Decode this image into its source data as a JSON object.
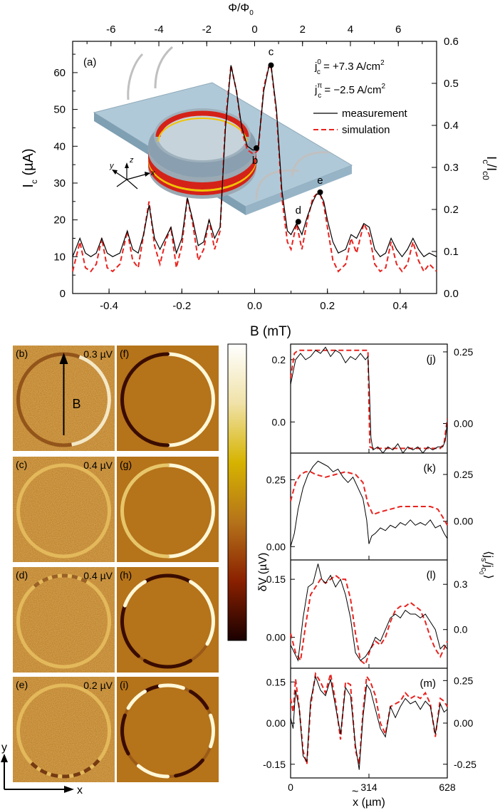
{
  "figure_label": "Figure with Ic(Phi) curve, SQUID maps, simulated maps and line scans",
  "chart_data": [
    {
      "id": "a",
      "type": "line",
      "panel_label": "(a)",
      "xlabel": "",
      "xlim": [
        -0.5,
        0.5
      ],
      "xticks": [
        "-0.4",
        "-0.2",
        "0.0",
        "0.2",
        "0.4"
      ],
      "top_axis_label": "Φ/Φ",
      "top_axis_label_sub": "0",
      "top_ticks": [
        "-6",
        "-4",
        "-2",
        "0",
        "2",
        "4",
        "6"
      ],
      "ylabel": "I",
      "ylabel_sub": "c",
      "ylabel_unit": "(µA)",
      "ylim": [
        0,
        68.5
      ],
      "yticks": [
        "0",
        "10",
        "20",
        "30",
        "40",
        "50",
        "60"
      ],
      "right_label": "I",
      "right_label_sub": "c",
      "right_label_tail": "/I",
      "right_label_sub2": "c0",
      "right_ticks": [
        "0.0",
        "0.1",
        "0.2",
        "0.3",
        "0.4",
        "0.5",
        "0.6"
      ],
      "jc0_prefix": "j",
      "jc0_sub": "c",
      "jc0_sup": "0",
      "jc0_value": " = +7.3 A/cm",
      "jcpi_prefix": "j",
      "jcpi_sub": "c",
      "jcpi_sup": "π",
      "jcpi_value": " = −2.5 A/cm",
      "unit_sup": "2",
      "legend": [
        "measurement",
        "simulation"
      ],
      "series_colors": [
        "#000000",
        "#e8231f"
      ],
      "series": [
        {
          "name": "measurement",
          "x": [
            -0.5,
            -0.48,
            -0.465,
            -0.45,
            -0.435,
            -0.42,
            -0.405,
            -0.39,
            -0.37,
            -0.35,
            -0.335,
            -0.32,
            -0.305,
            -0.29,
            -0.275,
            -0.26,
            -0.245,
            -0.23,
            -0.215,
            -0.2,
            -0.185,
            -0.17,
            -0.155,
            -0.14,
            -0.125,
            -0.11,
            -0.095,
            -0.08,
            -0.065,
            -0.05,
            -0.035,
            -0.02,
            -0.005,
            0.0,
            0.01,
            0.025,
            0.04,
            0.045,
            0.06,
            0.075,
            0.09,
            0.1,
            0.115,
            0.13,
            0.145,
            0.16,
            0.17,
            0.18,
            0.19,
            0.2,
            0.215,
            0.23,
            0.25,
            0.265,
            0.28,
            0.3,
            0.315,
            0.33,
            0.345,
            0.36,
            0.375,
            0.39,
            0.405,
            0.42,
            0.435,
            0.45,
            0.465,
            0.48,
            0.5
          ],
          "y": [
            10,
            15,
            11,
            10,
            11,
            15,
            11,
            10,
            11,
            17,
            12,
            11,
            16,
            24,
            15,
            12,
            15,
            18,
            11,
            15,
            26,
            20,
            13,
            14,
            20,
            15,
            18,
            45,
            62,
            55,
            45,
            40,
            39,
            39,
            40,
            55,
            62,
            62,
            50,
            28,
            17,
            16,
            19,
            16,
            21,
            25,
            27,
            27,
            25,
            20,
            14,
            11,
            12,
            16,
            15,
            19,
            18,
            12,
            10,
            11,
            15,
            12,
            10,
            12,
            15,
            12,
            10,
            11,
            10
          ]
        },
        {
          "name": "simulation",
          "x": [
            -0.5,
            -0.48,
            -0.465,
            -0.45,
            -0.435,
            -0.42,
            -0.405,
            -0.39,
            -0.37,
            -0.35,
            -0.335,
            -0.32,
            -0.305,
            -0.29,
            -0.275,
            -0.26,
            -0.245,
            -0.23,
            -0.215,
            -0.2,
            -0.185,
            -0.17,
            -0.155,
            -0.14,
            -0.125,
            -0.11,
            -0.095,
            -0.08,
            -0.065,
            -0.05,
            -0.035,
            -0.02,
            -0.005,
            0.0,
            0.01,
            0.025,
            0.04,
            0.045,
            0.06,
            0.075,
            0.09,
            0.1,
            0.115,
            0.13,
            0.145,
            0.16,
            0.17,
            0.18,
            0.19,
            0.2,
            0.215,
            0.23,
            0.25,
            0.265,
            0.28,
            0.3,
            0.315,
            0.33,
            0.345,
            0.36,
            0.375,
            0.39,
            0.405,
            0.42,
            0.435,
            0.45,
            0.465,
            0.48,
            0.5
          ],
          "y": [
            6,
            14,
            7,
            6,
            8,
            15,
            7,
            6,
            8,
            17,
            9,
            7,
            16,
            25,
            13,
            8,
            14,
            18,
            7,
            13,
            26,
            19,
            9,
            12,
            20,
            12,
            17,
            47,
            62,
            55,
            44,
            39,
            38,
            38,
            39,
            56,
            62,
            62,
            49,
            26,
            14,
            12,
            19,
            12,
            20,
            26,
            27,
            27,
            24,
            18,
            9,
            6,
            8,
            15,
            11,
            19,
            16,
            8,
            6,
            7,
            14,
            8,
            6,
            8,
            14,
            9,
            6,
            8,
            6
          ]
        }
      ],
      "markers": [
        {
          "label": "b",
          "x": 0.005,
          "y": 39.5
        },
        {
          "label": "c",
          "x": 0.045,
          "y": 62
        },
        {
          "label": "d",
          "x": 0.12,
          "y": 19.5
        },
        {
          "label": "e",
          "x": 0.18,
          "y": 27.5
        }
      ],
      "axes_3d": [
        "y",
        "z",
        "x"
      ]
    },
    {
      "id": "j",
      "type": "line",
      "panel_label": "(j)",
      "ylim": [
        -0.1,
        0.25
      ],
      "yticks": [
        "0.2",
        "0.0"
      ],
      "right_ticks": [
        "0.25",
        "0.00"
      ],
      "series": [
        {
          "name": "measurement",
          "x": [
            0,
            20,
            40,
            60,
            80,
            100,
            120,
            140,
            160,
            180,
            200,
            220,
            240,
            260,
            280,
            300,
            310,
            316,
            322,
            330,
            350,
            370,
            390,
            410,
            430,
            450,
            470,
            490,
            510,
            530,
            550,
            570,
            590,
            610,
            620,
            628
          ],
          "y": [
            0.12,
            0.2,
            0.22,
            0.2,
            0.21,
            0.23,
            0.22,
            0.24,
            0.21,
            0.23,
            0.22,
            0.19,
            0.21,
            0.2,
            0.22,
            0.2,
            0.21,
            0.1,
            -0.05,
            -0.09,
            -0.08,
            -0.1,
            -0.08,
            -0.09,
            -0.07,
            -0.1,
            -0.08,
            -0.09,
            -0.08,
            -0.1,
            -0.08,
            -0.09,
            -0.08,
            -0.08,
            -0.06,
            0.0
          ]
        },
        {
          "name": "simulation",
          "x": [
            0,
            15,
            30,
            310,
            314,
            318,
            330,
            600,
            615,
            628
          ],
          "y": [
            0.14,
            0.22,
            0.23,
            0.23,
            0.05,
            -0.08,
            -0.085,
            -0.085,
            -0.07,
            0.01
          ]
        }
      ]
    },
    {
      "id": "k",
      "type": "line",
      "panel_label": "(k)",
      "ylim": [
        -0.05,
        0.35
      ],
      "yticks": [
        "0.25",
        "0.00"
      ],
      "right_ticks": [
        "0.25",
        "0.00"
      ],
      "series": [
        {
          "name": "measurement",
          "x": [
            0,
            15,
            30,
            50,
            70,
            90,
            110,
            130,
            150,
            170,
            190,
            210,
            230,
            250,
            270,
            290,
            305,
            314,
            325,
            340,
            360,
            380,
            400,
            420,
            440,
            460,
            480,
            500,
            520,
            540,
            560,
            580,
            600,
            615,
            628
          ],
          "y": [
            0.0,
            0.05,
            0.14,
            0.22,
            0.27,
            0.3,
            0.32,
            0.31,
            0.3,
            0.28,
            0.29,
            0.26,
            0.24,
            0.26,
            0.22,
            0.18,
            0.1,
            0.01,
            0.04,
            0.05,
            0.07,
            0.06,
            0.08,
            0.07,
            0.09,
            0.08,
            0.1,
            0.08,
            0.09,
            0.08,
            0.1,
            0.07,
            0.08,
            0.05,
            0.03
          ]
        },
        {
          "name": "simulation",
          "x": [
            0,
            20,
            40,
            60,
            80,
            100,
            140,
            180,
            220,
            260,
            290,
            310,
            330,
            360,
            400,
            440,
            480,
            520,
            560,
            590,
            610,
            628
          ],
          "y": [
            0.17,
            0.24,
            0.27,
            0.28,
            0.28,
            0.27,
            0.26,
            0.27,
            0.28,
            0.27,
            0.24,
            0.16,
            0.12,
            0.13,
            0.14,
            0.15,
            0.15,
            0.15,
            0.15,
            0.14,
            0.11,
            0.08
          ]
        }
      ]
    },
    {
      "id": "l",
      "type": "line",
      "panel_label": "(l)",
      "ylim": [
        -0.08,
        0.2
      ],
      "yticks": [
        "0.15",
        "0.00"
      ],
      "right_ticks": [
        "0.3",
        "0.0"
      ],
      "series": [
        {
          "name": "measurement",
          "x": [
            0,
            15,
            30,
            50,
            70,
            90,
            110,
            125,
            140,
            160,
            180,
            200,
            220,
            240,
            260,
            280,
            300,
            320,
            340,
            360,
            380,
            400,
            420,
            440,
            460,
            480,
            500,
            520,
            540,
            560,
            580,
            600,
            615,
            628
          ],
          "y": [
            -0.02,
            -0.04,
            -0.06,
            0.05,
            0.13,
            0.14,
            0.19,
            0.15,
            0.14,
            0.16,
            0.13,
            0.15,
            0.11,
            0.05,
            -0.04,
            -0.06,
            -0.05,
            -0.03,
            0.0,
            -0.01,
            0.02,
            0.05,
            0.06,
            0.05,
            0.07,
            0.06,
            0.06,
            0.05,
            0.06,
            0.04,
            0.02,
            -0.03,
            -0.02,
            -0.03
          ]
        },
        {
          "name": "simulation",
          "x": [
            0,
            20,
            40,
            60,
            80,
            100,
            120,
            140,
            160,
            180,
            200,
            220,
            240,
            260,
            280,
            300,
            320,
            340,
            360,
            380,
            400,
            420,
            440,
            460,
            480,
            500,
            520,
            540,
            560,
            580,
            600,
            615,
            628
          ],
          "y": [
            0.01,
            -0.04,
            -0.06,
            0.03,
            0.11,
            0.13,
            0.15,
            0.14,
            0.15,
            0.16,
            0.15,
            0.15,
            0.1,
            0.01,
            -0.06,
            -0.07,
            -0.03,
            -0.01,
            -0.02,
            0.0,
            0.04,
            0.07,
            0.08,
            0.08,
            0.09,
            0.08,
            0.07,
            0.04,
            0.0,
            -0.03,
            -0.05,
            -0.03,
            -0.01
          ]
        }
      ]
    },
    {
      "id": "m",
      "type": "line",
      "panel_label": "(m)",
      "ylim": [
        -0.2,
        0.2
      ],
      "yticks": [
        "0.15",
        "0.00",
        "-0.15"
      ],
      "right_ticks": [
        "0.25",
        "0.00",
        "-0.25"
      ],
      "xticks": [
        "0",
        "314",
        "628"
      ],
      "xlabel": "x (µm)",
      "xlabel_tilde": "~",
      "ylabel": "δV (µV)",
      "right_label": "⟨j",
      "right_label_sub": "s",
      "right_label_mid": "/j",
      "right_label_sub2": "c",
      "right_label_sub3": "0",
      "right_label_tail": "⟩",
      "series": [
        {
          "name": "measurement",
          "x": [
            0,
            10,
            20,
            35,
            50,
            65,
            80,
            100,
            120,
            140,
            160,
            180,
            200,
            220,
            240,
            260,
            275,
            290,
            305,
            320,
            340,
            360,
            380,
            400,
            420,
            440,
            460,
            480,
            500,
            520,
            540,
            560,
            580,
            600,
            615,
            628
          ],
          "y": [
            0.02,
            -0.02,
            0.12,
            0.05,
            -0.12,
            -0.14,
            0.08,
            0.17,
            0.12,
            0.1,
            0.16,
            0.06,
            -0.04,
            0.13,
            0.1,
            -0.08,
            -0.17,
            0.02,
            0.14,
            0.12,
            0.05,
            -0.02,
            -0.05,
            0.06,
            0.02,
            0.06,
            0.09,
            0.07,
            0.08,
            0.05,
            0.08,
            0.06,
            -0.04,
            0.07,
            0.04,
            0.05
          ]
        },
        {
          "name": "simulation",
          "x": [
            0,
            10,
            20,
            35,
            50,
            65,
            80,
            100,
            120,
            140,
            160,
            180,
            200,
            220,
            240,
            260,
            275,
            290,
            305,
            320,
            340,
            360,
            380,
            400,
            420,
            440,
            460,
            480,
            500,
            520,
            540,
            560,
            580,
            600,
            615,
            628
          ],
          "y": [
            0.09,
            0.04,
            0.16,
            0.05,
            -0.1,
            -0.15,
            0.06,
            0.18,
            0.15,
            0.11,
            0.18,
            0.08,
            -0.06,
            0.15,
            0.14,
            -0.1,
            -0.15,
            0.04,
            0.17,
            0.15,
            0.1,
            0.0,
            -0.04,
            0.06,
            0.07,
            0.08,
            0.11,
            0.09,
            0.1,
            0.09,
            0.11,
            0.07,
            -0.05,
            0.09,
            0.08,
            0.06
          ]
        }
      ]
    }
  ],
  "colorbar": {
    "label": "B (mT)"
  },
  "map_panels": [
    {
      "label": "(b)",
      "voltage": "0.3 µV",
      "sim_label": "(f)",
      "arrow_label": "B"
    },
    {
      "label": "(c)",
      "voltage": "0.4 µV",
      "sim_label": "(g)"
    },
    {
      "label": "(d)",
      "voltage": "0.4 µV",
      "sim_label": "(h)"
    },
    {
      "label": "(e)",
      "voltage": "0.2 µV",
      "sim_label": "(i)"
    }
  ],
  "corner_axes": {
    "y": "y",
    "x": "x"
  },
  "colors": {
    "map_bg": "#b5731a",
    "dark": "#3a0c00",
    "bright": "#fff8d8",
    "sim_red": "#e8231f"
  }
}
